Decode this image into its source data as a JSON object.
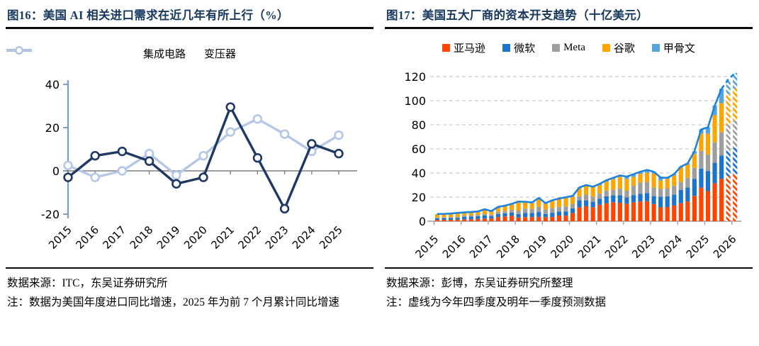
{
  "figures": [
    {
      "title": "图16：美国 AI 相关进口需求在近几年有所上行（%）",
      "source": "数据来源：ITC，东吴证券研究所",
      "note": "注：数据为美国年度进口同比增速，2025 年为前 7 个月累计同比增速",
      "chart_data": {
        "type": "line",
        "categories": [
          "2015",
          "2016",
          "2017",
          "2018",
          "2019",
          "2020",
          "2021",
          "2022",
          "2023",
          "2024",
          "2025"
        ],
        "series": [
          {
            "name": "集成电路",
            "color": "#1F3864",
            "values": [
              -3,
              7,
              9,
              4.5,
              -6,
              -3,
              29.5,
              6,
              -17.5,
              12.5,
              8
            ]
          },
          {
            "name": "变压器",
            "color": "#B4C7E7",
            "values": [
              2.5,
              -3,
              0,
              8,
              -2,
              7,
              18,
              24,
              17,
              9,
              16.5
            ]
          }
        ],
        "ylim": [
          -20,
          40
        ],
        "yticks": [
          40,
          20,
          0,
          -20
        ],
        "legend_position": "top",
        "grid": false,
        "zero_line": true,
        "marker": "open-circle"
      }
    },
    {
      "title": "图17：美国五大厂商的资本开支趋势（十亿美元）",
      "source": "数据来源：彭博，东吴证券研究所整理",
      "note": "注：虚线为今年四季度及明年一季度预测数据",
      "chart_data": {
        "type": "stacked-bar-with-total-line",
        "x_year_labels": [
          "2015",
          "2016",
          "2017",
          "2018",
          "2019",
          "2020",
          "2021",
          "2022",
          "2023",
          "2024",
          "2025",
          "2026"
        ],
        "quarters": [
          "2015Q1",
          "2015Q2",
          "2015Q3",
          "2015Q4",
          "2016Q1",
          "2016Q2",
          "2016Q3",
          "2016Q4",
          "2017Q1",
          "2017Q2",
          "2017Q3",
          "2017Q4",
          "2018Q1",
          "2018Q2",
          "2018Q3",
          "2018Q4",
          "2019Q1",
          "2019Q2",
          "2019Q3",
          "2019Q4",
          "2020Q1",
          "2020Q2",
          "2020Q3",
          "2020Q4",
          "2021Q1",
          "2021Q2",
          "2021Q3",
          "2021Q4",
          "2022Q1",
          "2022Q2",
          "2022Q3",
          "2022Q4",
          "2023Q1",
          "2023Q2",
          "2023Q3",
          "2023Q4",
          "2024Q1",
          "2024Q2",
          "2024Q3",
          "2024Q4",
          "2025Q1",
          "2025Q2",
          "2025Q3",
          "2025Q4",
          "2026Q1"
        ],
        "forecast_last_n": 2,
        "series": [
          {
            "name": "亚马逊",
            "color": "#FF4500",
            "values": [
              1.1,
              1.2,
              1.2,
              1.3,
              1.6,
              1.7,
              1.9,
              2.2,
              2.2,
              3.4,
              4.0,
              4.5,
              3.1,
              3.4,
              3.4,
              3.7,
              3.4,
              3.6,
              4.7,
              4.6,
              6.8,
              11.5,
              12.4,
              11.6,
              13.6,
              14.9,
              15.7,
              15.3,
              14.5,
              15.7,
              16.4,
              16.6,
              14.2,
              11.5,
              11.8,
              13.0,
              14.9,
              16.4,
              21.0,
              27.8,
              25.0,
              31.4,
              35.1,
              37.5,
              39.0
            ]
          },
          {
            "name": "微软",
            "color": "#1B74CE",
            "values": [
              1.4,
              1.4,
              1.5,
              1.5,
              2.0,
              2.1,
              2.2,
              2.5,
              2.1,
              2.5,
              2.5,
              2.6,
              2.9,
              3.5,
              3.5,
              3.9,
              2.6,
              3.4,
              3.4,
              3.5,
              3.9,
              5.8,
              4.9,
              4.5,
              5.1,
              5.8,
              5.9,
              6.3,
              5.3,
              6.0,
              6.3,
              6.8,
              6.6,
              8.9,
              8.9,
              9.0,
              11.0,
              11.5,
              14.0,
              15.8,
              16.7,
              17.1,
              19.4,
              21.0,
              22.0
            ]
          },
          {
            "name": "Meta",
            "color": "#9E9E9E",
            "values": [
              0.5,
              0.5,
              0.6,
              0.7,
              1.1,
              1.2,
              1.1,
              1.2,
              1.2,
              1.8,
              2.0,
              2.3,
              2.8,
              3.5,
              3.3,
              4.4,
              3.8,
              4.0,
              3.8,
              4.2,
              3.7,
              3.4,
              4.8,
              4.4,
              4.4,
              4.7,
              4.5,
              5.4,
              5.5,
              7.7,
              9.4,
              9.2,
              7.1,
              6.4,
              6.5,
              7.5,
              6.7,
              8.2,
              9.2,
              14.8,
              13.7,
              17.0,
              19.4,
              21.5,
              22.5
            ]
          },
          {
            "name": "谷歌",
            "color": "#FFA500",
            "values": [
              2.5,
              2.5,
              2.6,
              2.9,
              2.3,
              2.3,
              2.6,
              3.6,
              2.5,
              3.8,
              4.0,
              4.6,
              7.1,
              5.3,
              5.0,
              6.9,
              4.8,
              6.0,
              6.5,
              7.2,
              6.2,
              6.9,
              7.5,
              7.7,
              6.9,
              7.5,
              8.8,
              9.9,
              9.8,
              7.4,
              7.3,
              7.6,
              11.6,
              6.9,
              8.0,
              8.5,
              12.0,
              10.9,
              11.8,
              14.3,
              17.2,
              22.4,
              24.0,
              25.5,
              26.5
            ]
          },
          {
            "name": "甲骨文",
            "color": "#56A4DC",
            "values": [
              0.5,
              0.5,
              0.5,
              0.5,
              0.3,
              0.3,
              0.3,
              0.4,
              0.4,
              0.4,
              0.4,
              0.4,
              0.4,
              0.4,
              0.4,
              0.4,
              0.4,
              0.4,
              0.4,
              0.4,
              0.4,
              0.4,
              0.4,
              0.4,
              1.0,
              1.1,
              1.1,
              1.1,
              1.9,
              2.2,
              1.6,
              2.3,
              1.5,
              2.5,
              0.8,
              1.0,
              0.7,
              1.0,
              2.0,
              3.5,
              5.3,
              8.0,
              12.0,
              12.0,
              13.0
            ]
          }
        ],
        "total_line_color": "#1D83DC",
        "ylim": [
          0,
          120
        ],
        "yticks": [
          0,
          20,
          40,
          60,
          80,
          100,
          120
        ],
        "legend_position": "top",
        "grid": "dashed-horizontal"
      }
    }
  ]
}
